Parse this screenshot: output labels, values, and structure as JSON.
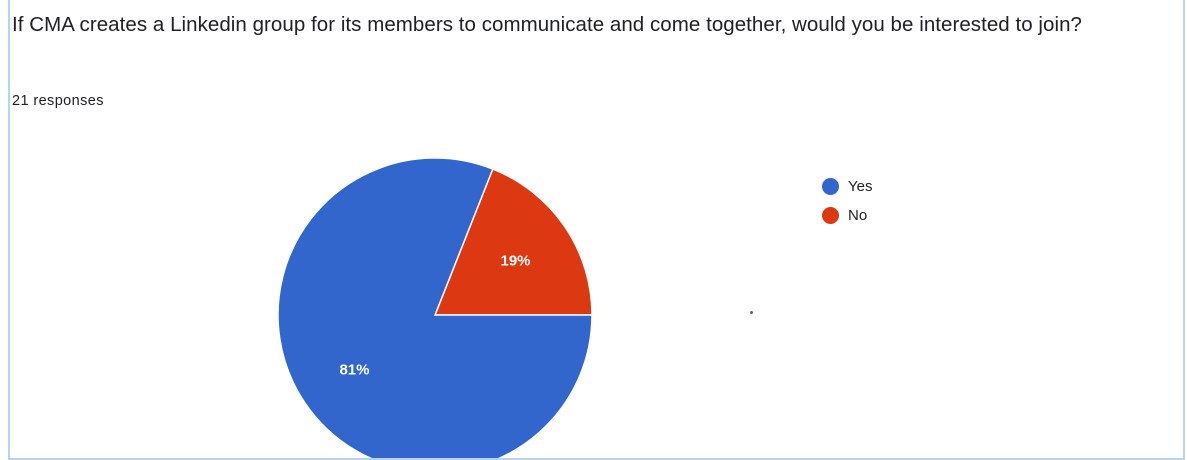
{
  "card": {
    "question": "If CMA creates a Linkedin group for its members to communicate and come together, would you be interested to join?",
    "responses": "21 responses"
  },
  "colors": {
    "yes": "#3366cc",
    "no": "#dc3912",
    "border": "#b9d3ea"
  },
  "chart_data": {
    "type": "pie",
    "title": "",
    "categories": [
      "Yes",
      "No"
    ],
    "values": [
      81,
      19
    ],
    "labels": [
      "81%",
      "19%"
    ],
    "colors": [
      "#3366cc",
      "#dc3912"
    ],
    "legend": "right"
  }
}
